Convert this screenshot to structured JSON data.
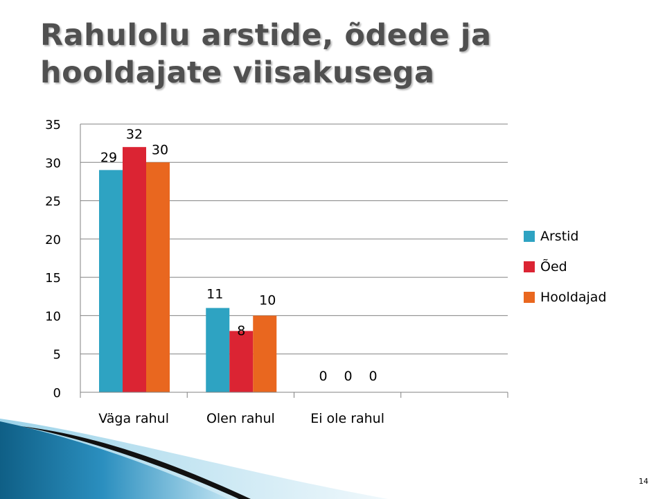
{
  "slide": {
    "title": "Rahulolu arstide, õdede ja hooldajate viisakusega",
    "page_number": "14"
  },
  "colors": {
    "arstid": "#2ea3c2",
    "oed": "#db2433",
    "hooldajad": "#e9671f",
    "gridline": "#808080",
    "title": "#505050"
  },
  "chart_data": {
    "type": "bar",
    "categories": [
      "Väga rahul",
      "Olen rahul",
      "Ei ole rahul",
      ""
    ],
    "series": [
      {
        "name": "Arstid",
        "values": [
          29,
          11,
          0,
          null
        ]
      },
      {
        "name": "Õed",
        "values": [
          32,
          8,
          0,
          null
        ]
      },
      {
        "name": "Hooldajad",
        "values": [
          30,
          10,
          0,
          null
        ]
      }
    ],
    "title": "",
    "xlabel": "",
    "ylabel": "",
    "ylim": [
      0,
      35
    ],
    "yticks": [
      0,
      5,
      10,
      15,
      20,
      25,
      30,
      35
    ],
    "grid": true,
    "legend_position": "right",
    "data_labels": true
  }
}
